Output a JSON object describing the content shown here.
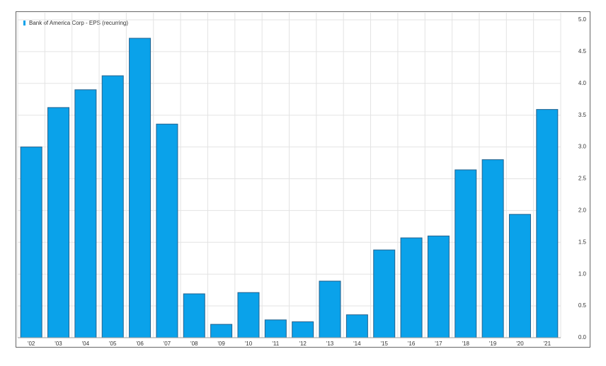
{
  "chart_data": {
    "type": "bar",
    "legend_label": "Bank of America Corp - EPS (recurring)",
    "categories": [
      "'02",
      "'03",
      "'04",
      "'05",
      "'06",
      "'07",
      "'08",
      "'09",
      "'10",
      "'11",
      "'12",
      "'13",
      "'14",
      "'15",
      "'16",
      "'17",
      "'18",
      "'19",
      "'20",
      "'21"
    ],
    "values": [
      3.0,
      3.62,
      3.9,
      4.12,
      4.71,
      3.36,
      0.69,
      0.21,
      0.71,
      0.28,
      0.25,
      0.89,
      0.36,
      1.38,
      1.57,
      1.6,
      2.64,
      2.8,
      1.94,
      3.59
    ],
    "color": "#0aa2ea",
    "ylim": [
      0,
      5
    ],
    "yticks": [
      {
        "value": 0,
        "label": "0.0"
      },
      0.5,
      {
        "value": 1,
        "label": "1.0"
      },
      1.5,
      {
        "value": 2,
        "label": "2.0"
      },
      2.5,
      {
        "value": 3,
        "label": "3.0"
      },
      3.5,
      {
        "value": 4,
        "label": "4.0"
      },
      4.5,
      {
        "value": 5,
        "label": "5.0"
      }
    ],
    "grid": true
  }
}
